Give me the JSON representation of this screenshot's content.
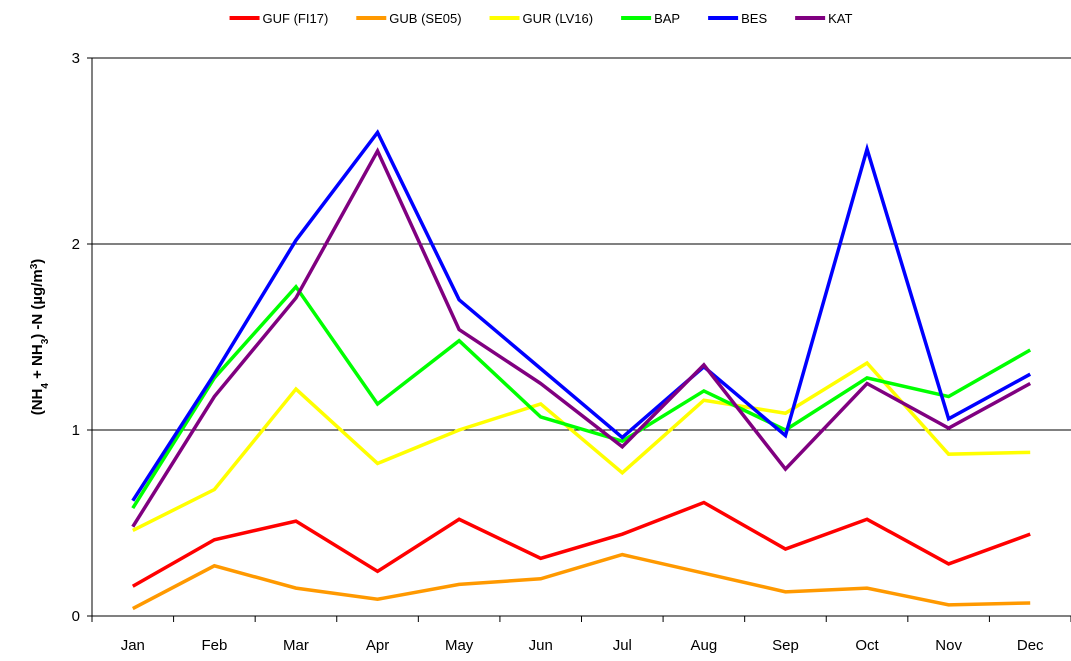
{
  "chart_data": {
    "type": "line",
    "ylabel": [
      {
        "text": "(NH"
      },
      {
        "text": "4",
        "shift": "sub"
      },
      {
        "text": " + NH"
      },
      {
        "text": "3",
        "shift": "sub"
      },
      {
        "text": ") -N  (µg/m"
      },
      {
        "text": "3",
        "shift": "super"
      },
      {
        "text": ")"
      }
    ],
    "categories": [
      "Jan",
      "Feb",
      "Mar",
      "Apr",
      "May",
      "Jun",
      "Jul",
      "Aug",
      "Sep",
      "Oct",
      "Nov",
      "Dec"
    ],
    "series": [
      {
        "name": "GUF (FI17)",
        "color": "#ff0000",
        "values": [
          0.16,
          0.41,
          0.51,
          0.24,
          0.52,
          0.31,
          0.44,
          0.61,
          0.36,
          0.52,
          0.28,
          0.44
        ]
      },
      {
        "name": "GUB (SE05)",
        "color": "#ff9900",
        "values": [
          0.04,
          0.27,
          0.15,
          0.09,
          0.17,
          0.2,
          0.33,
          0.23,
          0.13,
          0.15,
          0.06,
          0.07
        ]
      },
      {
        "name": "GUR (LV16)",
        "color": "#ffff00",
        "values": [
          0.46,
          0.68,
          1.22,
          0.82,
          1.0,
          1.14,
          0.77,
          1.16,
          1.09,
          1.36,
          0.87,
          0.88
        ]
      },
      {
        "name": "BAP",
        "color": "#00ff00",
        "values": [
          0.58,
          1.28,
          1.77,
          1.14,
          1.48,
          1.07,
          0.94,
          1.21,
          1.0,
          1.28,
          1.18,
          1.43
        ]
      },
      {
        "name": "BES",
        "color": "#0000ff",
        "values": [
          0.62,
          1.3,
          2.02,
          2.6,
          1.7,
          1.33,
          0.96,
          1.34,
          0.97,
          2.51,
          1.06,
          1.3
        ]
      },
      {
        "name": "KAT",
        "color": "#800080",
        "values": [
          0.48,
          1.18,
          1.71,
          2.5,
          1.54,
          1.25,
          0.91,
          1.35,
          0.79,
          1.25,
          1.01,
          1.25
        ]
      }
    ],
    "ylim": [
      0,
      3
    ],
    "yticks": [
      0,
      1,
      2,
      3
    ],
    "grid": true,
    "legend": "top"
  }
}
